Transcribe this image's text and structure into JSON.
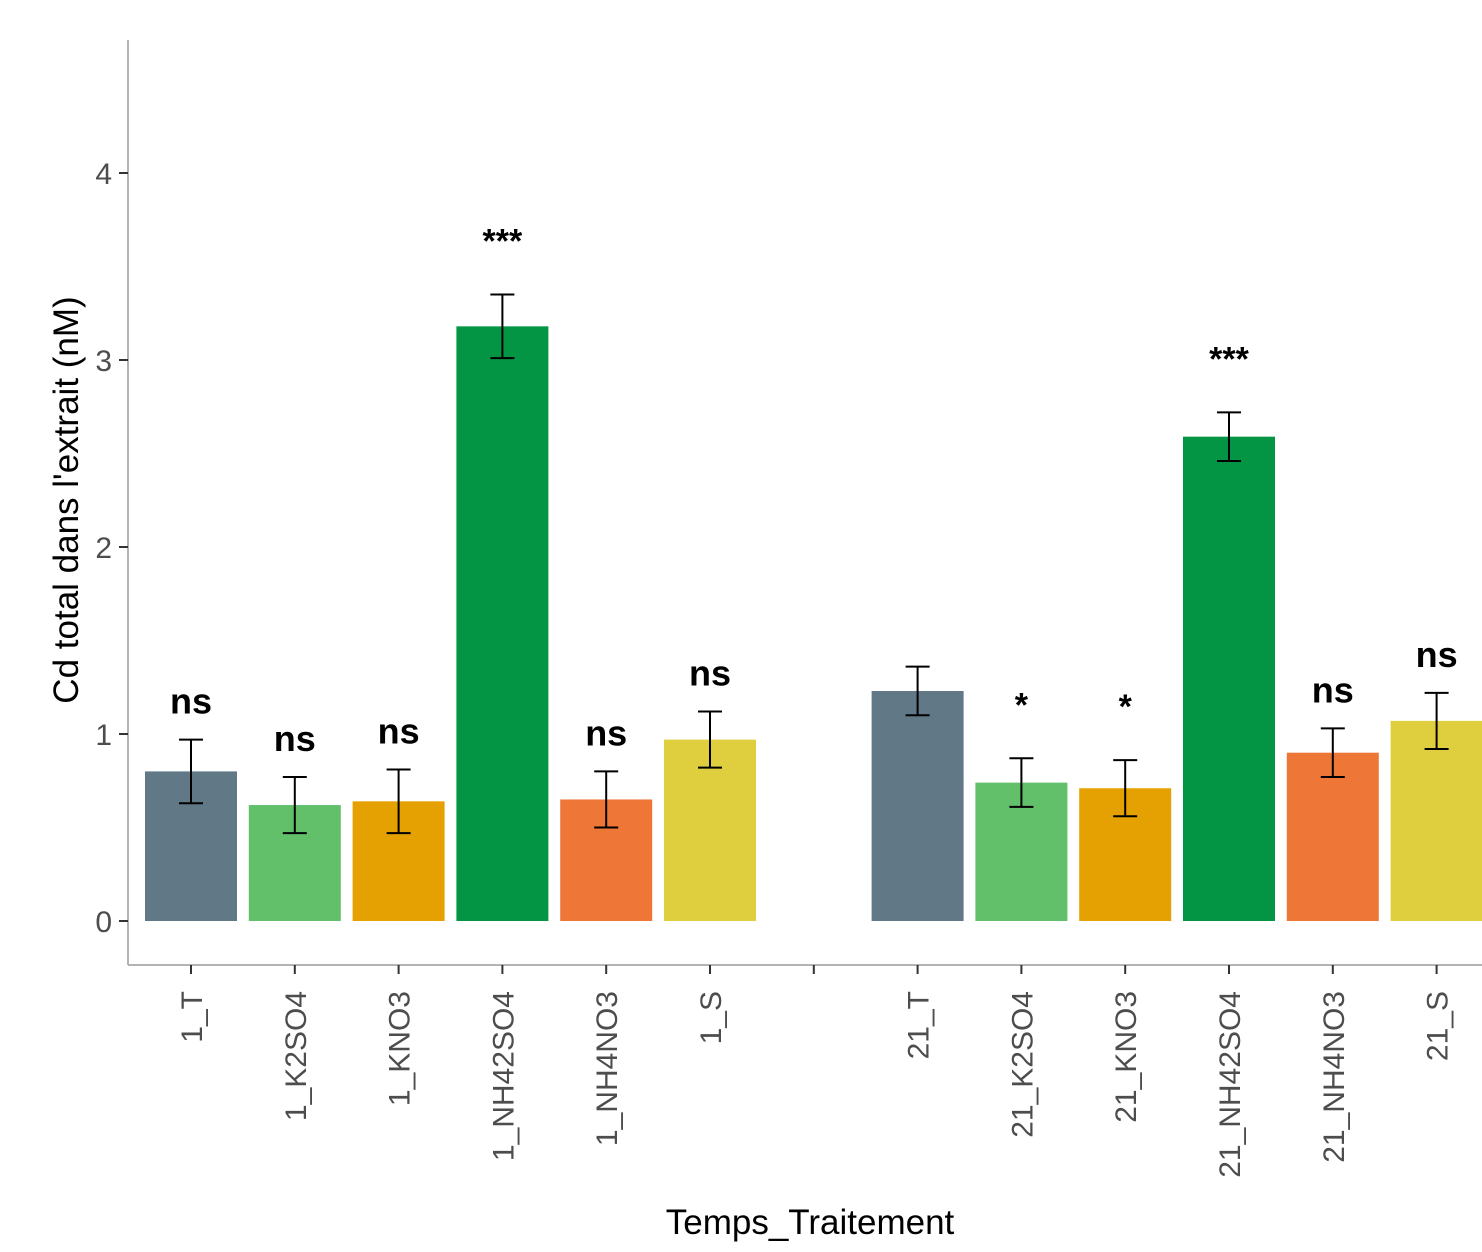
{
  "chart_data": {
    "type": "bar",
    "xlabel": "Temps_Traitement",
    "ylabel": "Cd total dans l'extrait (nM)",
    "ylim": [
      -0.22,
      4.7
    ],
    "yticks": [
      0,
      1,
      2,
      3,
      4
    ],
    "grid": false,
    "categories": [
      "1_T",
      "1_K2SO4",
      "1_KNO3",
      "1_NH42SO4",
      "1_NH4NO3",
      "1_S",
      "",
      "21_T",
      "21_K2SO4",
      "21_KNO3",
      "21_NH42SO4",
      "21_NH4NO3",
      "21_S"
    ],
    "values": [
      0.8,
      0.62,
      0.64,
      3.18,
      0.65,
      0.97,
      null,
      1.23,
      0.74,
      0.71,
      2.59,
      0.9,
      1.07
    ],
    "errors": [
      0.17,
      0.15,
      0.17,
      0.17,
      0.15,
      0.15,
      null,
      0.13,
      0.13,
      0.15,
      0.13,
      0.13,
      0.15
    ],
    "colors": [
      "#617887",
      "#62bf6a",
      "#e5a102",
      "#039544",
      "#ee7737",
      "#dfcf3e",
      null,
      "#617887",
      "#62bf6a",
      "#e5a102",
      "#039544",
      "#ee7737",
      "#dfcf3e"
    ],
    "annotations": [
      "ns",
      "ns",
      "ns",
      "***",
      "ns",
      "ns",
      "",
      "",
      "*",
      "*",
      "***",
      "ns",
      "ns"
    ]
  }
}
